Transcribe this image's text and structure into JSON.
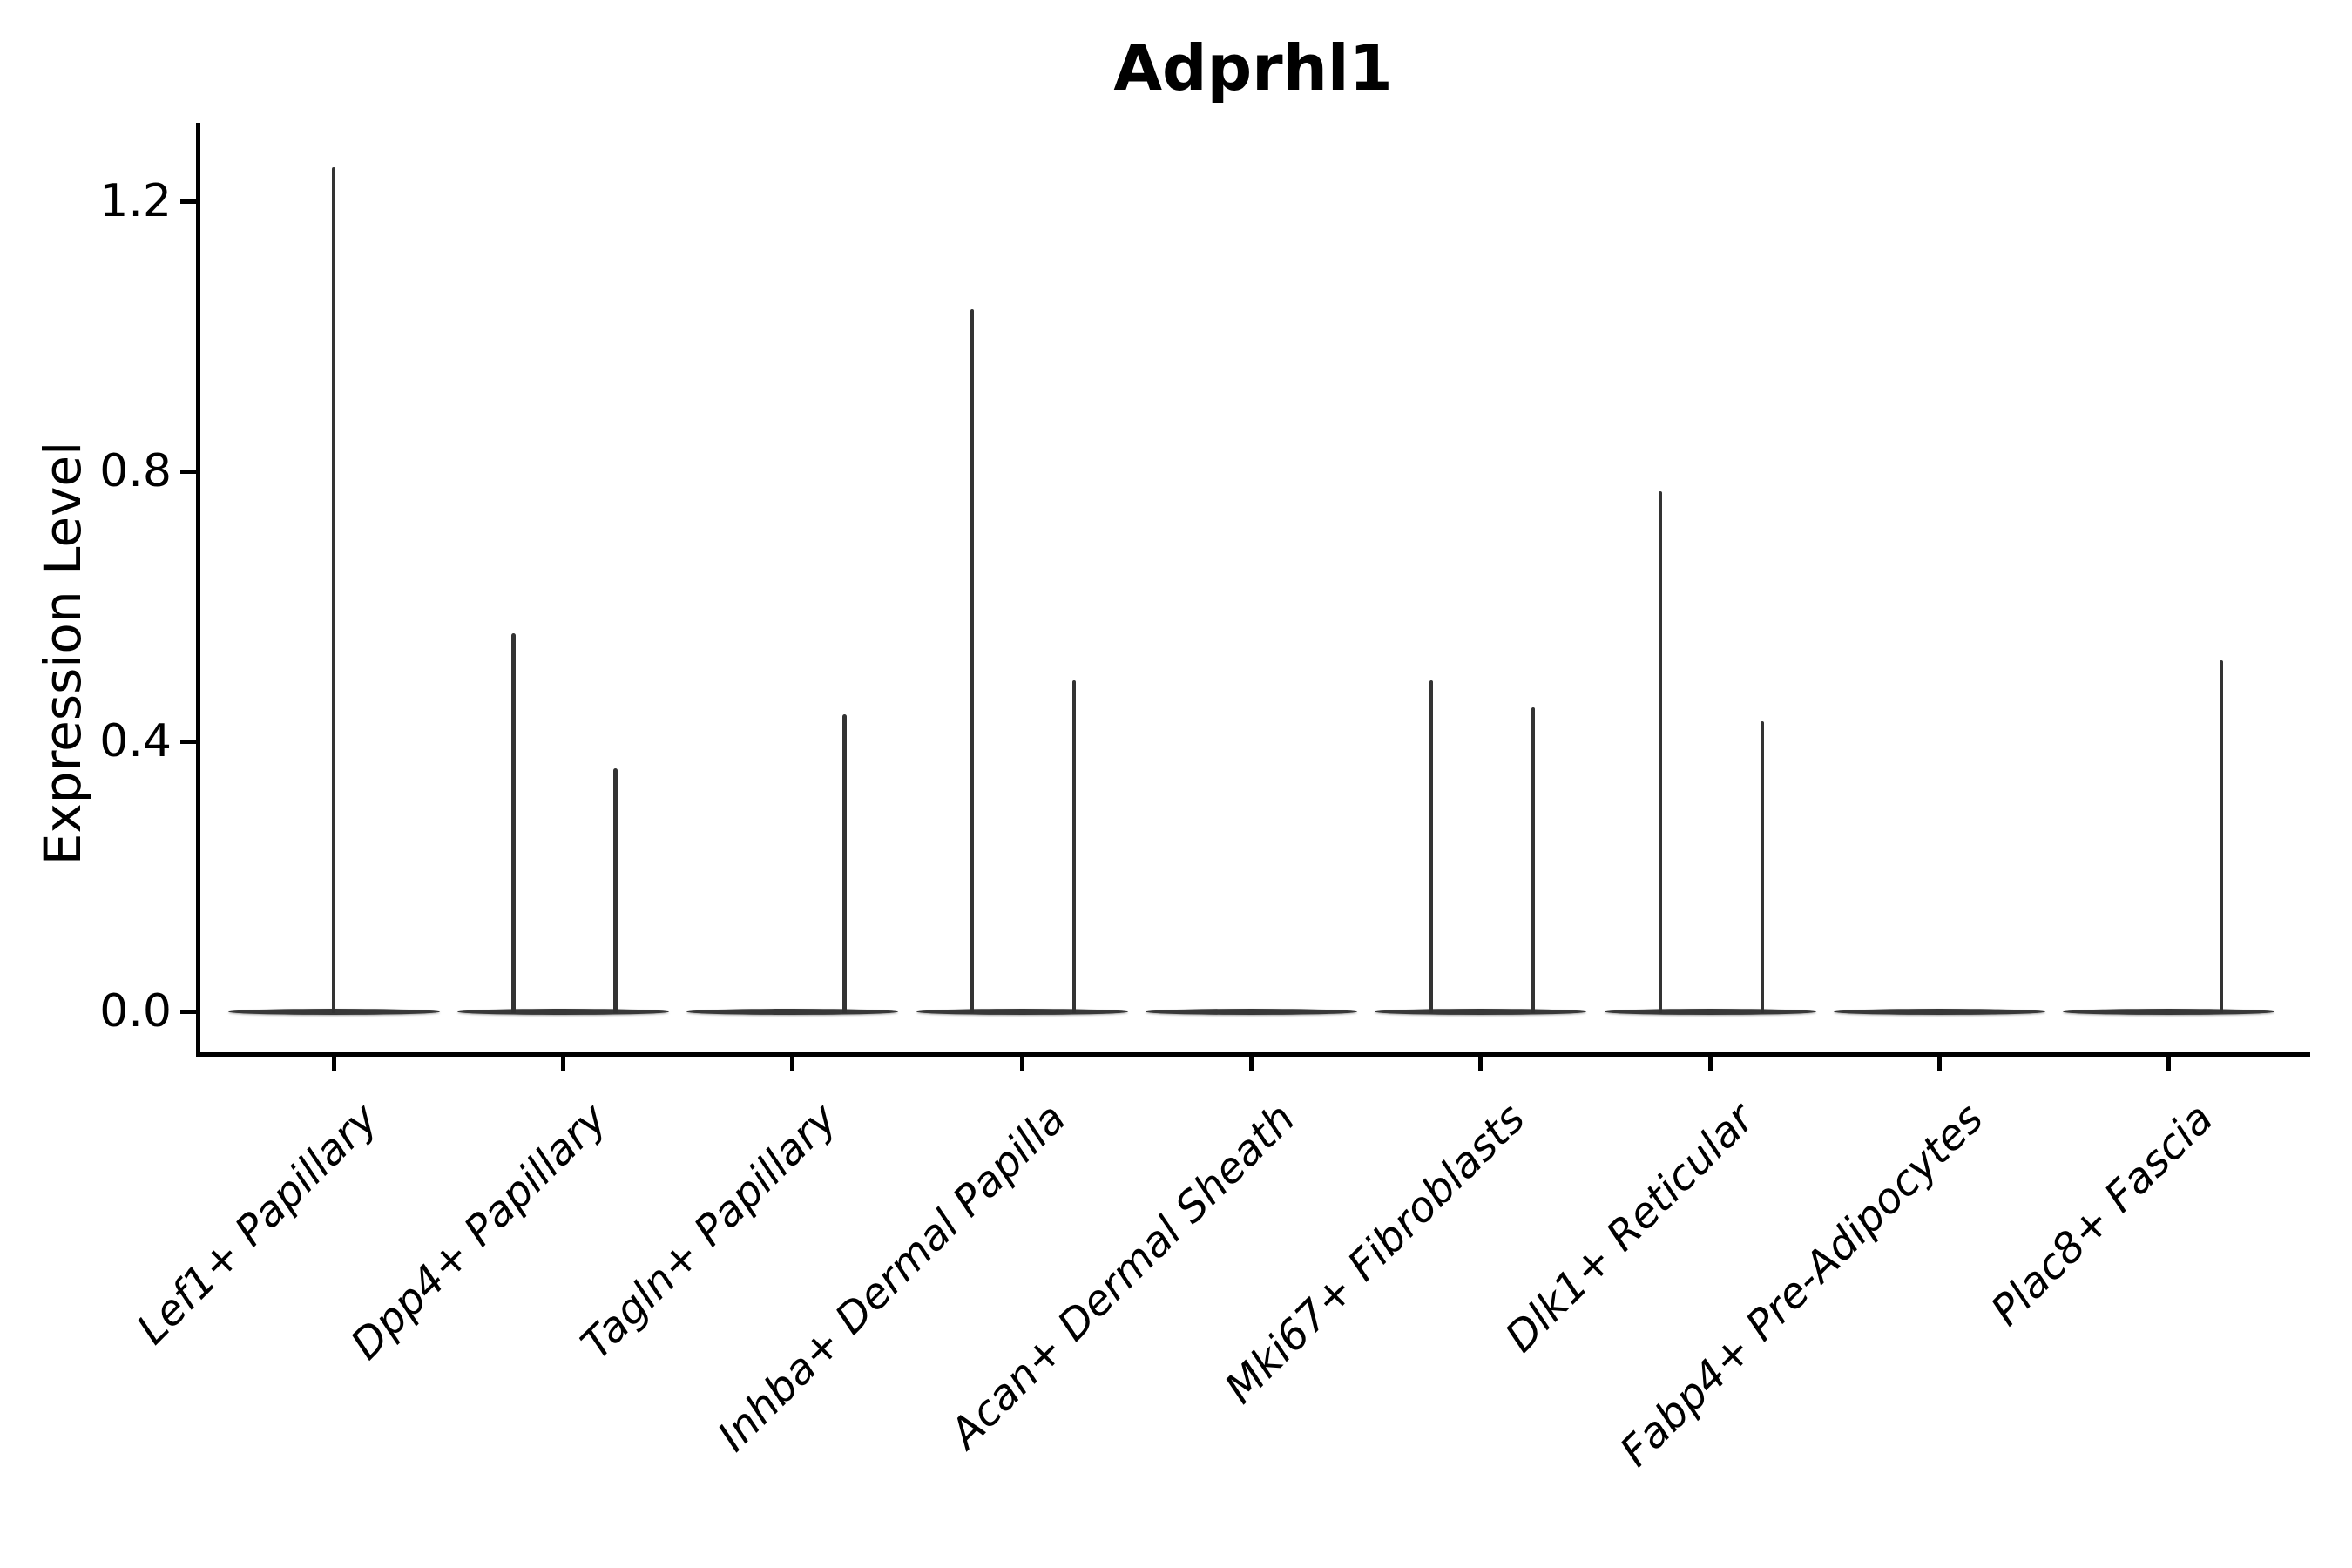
{
  "chart_data": {
    "type": "violin",
    "title": "Adprhl1",
    "xlabel": "",
    "ylabel": "Expression Level",
    "categories": [
      "Lef1+ Papillary",
      "Dpp4+ Papillary",
      "Tagln+ Papillary",
      "Inhba+ Dermal Papilla",
      "Acan+ Dermal Sheath",
      "Mki67+ Fibroblasts",
      "Dlk1+ Reticular",
      "Fabp4+ Pre-Adipocytes",
      "Plac8+ Fascia"
    ],
    "ytick_values": [
      0.0,
      0.4,
      0.8,
      1.2
    ],
    "ytick_labels": [
      "0.0",
      "0.4",
      "0.8",
      "1.2"
    ],
    "ylim": [
      -0.06,
      1.32
    ],
    "grid": false,
    "legend": "none",
    "x_tick_label_rotation_deg": 45,
    "line_color": "#333333",
    "axis_color": "#000000",
    "violins": [
      {
        "category": "Lef1+ Papillary",
        "zero_body": true,
        "spikes": [
          {
            "pos": "center",
            "value": 1.25
          }
        ]
      },
      {
        "category": "Dpp4+ Papillary",
        "zero_body": true,
        "spikes": [
          {
            "pos": "left",
            "value": 0.56
          },
          {
            "pos": "right",
            "value": 0.36
          }
        ]
      },
      {
        "category": "Tagln+ Papillary",
        "zero_body": true,
        "spikes": [
          {
            "pos": "right",
            "value": 0.44
          }
        ]
      },
      {
        "category": "Inhba+ Dermal Papilla",
        "zero_body": true,
        "spikes": [
          {
            "pos": "left",
            "value": 1.04
          },
          {
            "pos": "right",
            "value": 0.49
          }
        ]
      },
      {
        "category": "Acan+ Dermal Sheath",
        "zero_body": true,
        "spikes": []
      },
      {
        "category": "Mki67+ Fibroblasts",
        "zero_body": true,
        "spikes": [
          {
            "pos": "left",
            "value": 0.49
          },
          {
            "pos": "right",
            "value": 0.45
          }
        ]
      },
      {
        "category": "Dlk1+ Reticular",
        "zero_body": true,
        "spikes": [
          {
            "pos": "left",
            "value": 0.77
          },
          {
            "pos": "right",
            "value": 0.43
          }
        ]
      },
      {
        "category": "Fabp4+ Pre-Adipocytes",
        "zero_body": true,
        "spikes": []
      },
      {
        "category": "Plac8+ Fascia",
        "zero_body": true,
        "spikes": [
          {
            "pos": "right",
            "value": 0.52
          }
        ]
      }
    ]
  }
}
